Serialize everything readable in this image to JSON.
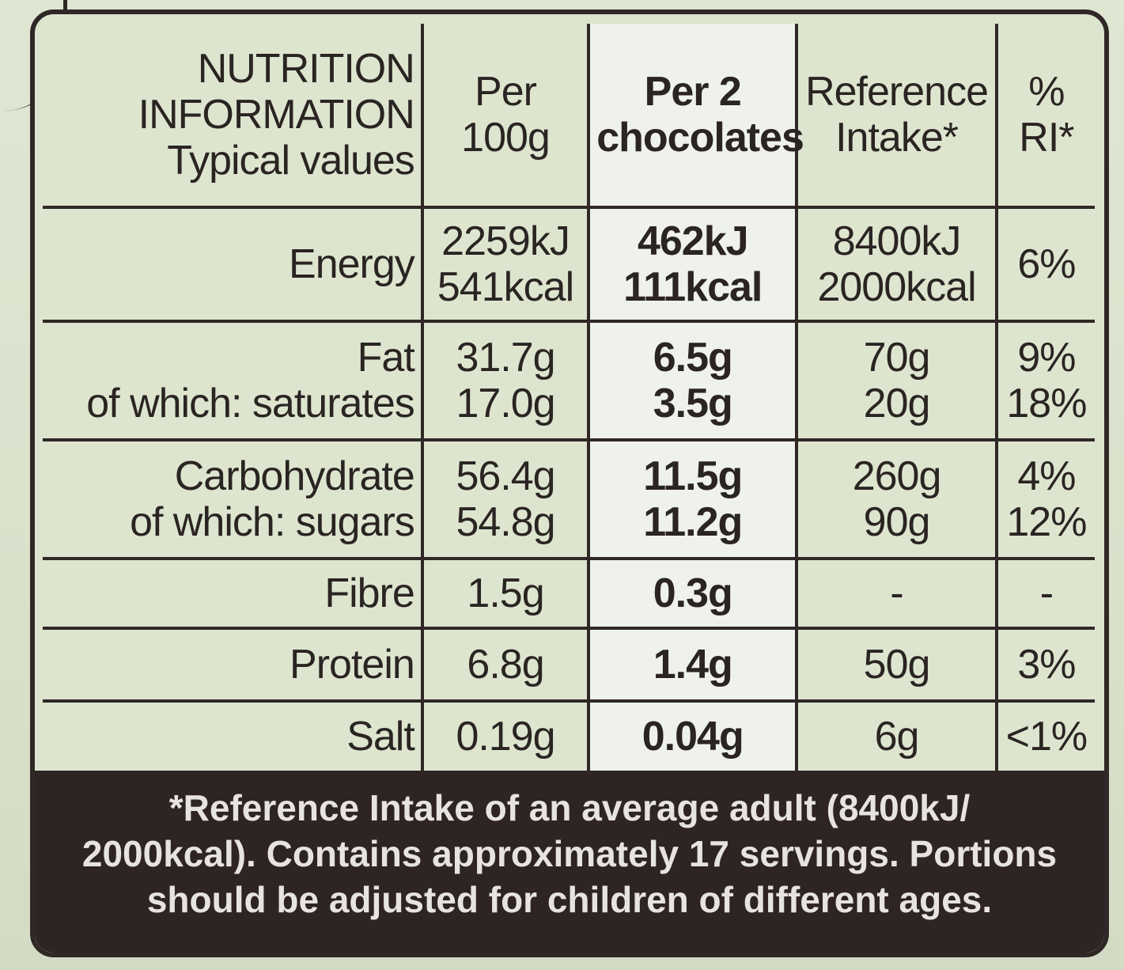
{
  "header": {
    "title_lines": [
      "NUTRITION",
      "INFORMATION",
      "Typical values"
    ],
    "per_100g_lines": [
      "Per",
      "100g"
    ],
    "per_serving_lines": [
      "Per 2",
      "chocolates"
    ],
    "reference_intake_lines": [
      "Reference",
      "Intake*"
    ],
    "percent_ri_lines": [
      "%",
      "RI*"
    ]
  },
  "rows": [
    {
      "labels": [
        "Energy"
      ],
      "per_100g": [
        "2259kJ",
        "541kcal"
      ],
      "per_serving": [
        "462kJ",
        "111kcal"
      ],
      "reference_intake": [
        "8400kJ",
        "2000kcal"
      ],
      "percent_ri": [
        "6%"
      ]
    },
    {
      "labels": [
        "Fat",
        "of which: saturates"
      ],
      "per_100g": [
        "31.7g",
        "17.0g"
      ],
      "per_serving": [
        "6.5g",
        "3.5g"
      ],
      "reference_intake": [
        "70g",
        "20g"
      ],
      "percent_ri": [
        "9%",
        "18%"
      ]
    },
    {
      "labels": [
        "Carbohydrate",
        "of which: sugars"
      ],
      "per_100g": [
        "56.4g",
        "54.8g"
      ],
      "per_serving": [
        "11.5g",
        "11.2g"
      ],
      "reference_intake": [
        "260g",
        "90g"
      ],
      "percent_ri": [
        "4%",
        "12%"
      ]
    },
    {
      "labels": [
        "Fibre"
      ],
      "per_100g": [
        "1.5g"
      ],
      "per_serving": [
        "0.3g"
      ],
      "reference_intake": [
        "-"
      ],
      "percent_ri": [
        "-"
      ]
    },
    {
      "labels": [
        "Protein"
      ],
      "per_100g": [
        "6.8g"
      ],
      "per_serving": [
        "1.4g"
      ],
      "reference_intake": [
        "50g"
      ],
      "percent_ri": [
        "3%"
      ]
    },
    {
      "labels": [
        "Salt"
      ],
      "per_100g": [
        "0.19g"
      ],
      "per_serving": [
        "0.04g"
      ],
      "reference_intake": [
        "6g"
      ],
      "percent_ri": [
        "<1%"
      ]
    }
  ],
  "footer": {
    "lines": [
      "*Reference Intake of an average adult (8400kJ/",
      "2000kcal). Contains approximately 17 servings. Portions",
      "should be adjusted for children of different ages."
    ]
  }
}
